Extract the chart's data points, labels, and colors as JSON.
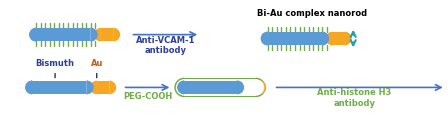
{
  "bg_color": "#ffffff",
  "bismuth_color": "#5b9bd5",
  "au_color": "#f5a623",
  "peg_border_color": "#70ad47",
  "spike_color": "#70ad47",
  "arrow_color": "#4472c4",
  "bismuth_label": "Bismuth",
  "au_label": "Au",
  "peg_label": "PEG-COOH",
  "anti_h3_label": "Anti-histone H3\nantibody",
  "anti_vcam_label": "Anti-VCAM-1\nantibody",
  "biAu_label": "Bi-Au complex nanorod",
  "label_color_blue": "#2e4099",
  "label_color_orange": "#c55a11",
  "teal_color": "#17a2b8"
}
